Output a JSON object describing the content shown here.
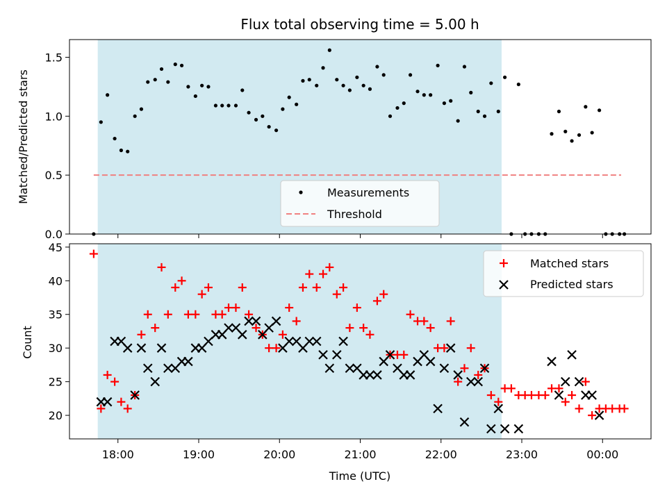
{
  "title": "Flux total observing time = 5.00 h",
  "chart_data": [
    {
      "type": "scatter",
      "panel": "top",
      "ylabel": "Matched/Predicted stars",
      "ylim": [
        0,
        1.65
      ],
      "yticks": [
        {
          "v": 0,
          "label": "0.0"
        },
        {
          "v": 0.5,
          "label": "0.5"
        },
        {
          "v": 1.0,
          "label": "1.0"
        },
        {
          "v": 1.5,
          "label": "1.5"
        }
      ],
      "legend": {
        "position": "lower-center",
        "measurements": "Measurements",
        "threshold": "Threshold"
      },
      "threshold": {
        "value": 0.5,
        "x_start": 17.7,
        "x_end": 24.23,
        "color": "#f08080"
      },
      "points": [
        [
          17.7,
          0.0
        ],
        [
          17.79,
          0.95
        ],
        [
          17.87,
          1.18
        ],
        [
          17.96,
          0.81
        ],
        [
          18.04,
          0.71
        ],
        [
          18.12,
          0.7
        ],
        [
          18.21,
          1.0
        ],
        [
          18.29,
          1.06
        ],
        [
          18.37,
          1.29
        ],
        [
          18.46,
          1.31
        ],
        [
          18.54,
          1.4
        ],
        [
          18.62,
          1.29
        ],
        [
          18.71,
          1.44
        ],
        [
          18.79,
          1.43
        ],
        [
          18.87,
          1.25
        ],
        [
          18.96,
          1.17
        ],
        [
          19.04,
          1.26
        ],
        [
          19.12,
          1.25
        ],
        [
          19.21,
          1.09
        ],
        [
          19.29,
          1.09
        ],
        [
          19.37,
          1.09
        ],
        [
          19.46,
          1.09
        ],
        [
          19.54,
          1.22
        ],
        [
          19.62,
          1.03
        ],
        [
          19.71,
          0.97
        ],
        [
          19.79,
          1.0
        ],
        [
          19.87,
          0.91
        ],
        [
          19.96,
          0.88
        ],
        [
          20.04,
          1.06
        ],
        [
          20.12,
          1.16
        ],
        [
          20.21,
          1.1
        ],
        [
          20.29,
          1.3
        ],
        [
          20.37,
          1.31
        ],
        [
          20.46,
          1.26
        ],
        [
          20.54,
          1.41
        ],
        [
          20.62,
          1.56
        ],
        [
          20.71,
          1.31
        ],
        [
          20.79,
          1.26
        ],
        [
          20.87,
          1.22
        ],
        [
          20.96,
          1.33
        ],
        [
          21.04,
          1.26
        ],
        [
          21.12,
          1.23
        ],
        [
          21.21,
          1.42
        ],
        [
          21.29,
          1.35
        ],
        [
          21.37,
          1.0
        ],
        [
          21.46,
          1.07
        ],
        [
          21.54,
          1.11
        ],
        [
          21.62,
          1.35
        ],
        [
          21.71,
          1.21
        ],
        [
          21.79,
          1.18
        ],
        [
          21.87,
          1.18
        ],
        [
          21.96,
          1.43
        ],
        [
          22.04,
          1.11
        ],
        [
          22.12,
          1.13
        ],
        [
          22.21,
          0.96
        ],
        [
          22.29,
          1.42
        ],
        [
          22.37,
          1.2
        ],
        [
          22.46,
          1.04
        ],
        [
          22.54,
          1.0
        ],
        [
          22.62,
          1.28
        ],
        [
          22.71,
          1.04
        ],
        [
          22.79,
          1.33
        ],
        [
          22.87,
          0.0
        ],
        [
          22.96,
          1.27
        ],
        [
          23.04,
          0.0
        ],
        [
          23.12,
          0.0
        ],
        [
          23.21,
          0.0
        ],
        [
          23.29,
          0.0
        ],
        [
          23.37,
          0.85
        ],
        [
          23.46,
          1.04
        ],
        [
          23.54,
          0.87
        ],
        [
          23.62,
          0.79
        ],
        [
          23.71,
          0.84
        ],
        [
          23.79,
          1.08
        ],
        [
          23.87,
          0.86
        ],
        [
          23.96,
          1.05
        ],
        [
          24.04,
          0.0
        ],
        [
          24.12,
          0.0
        ],
        [
          24.21,
          0.0
        ],
        [
          24.27,
          0.0
        ]
      ]
    },
    {
      "type": "scatter",
      "panel": "bottom",
      "xlabel": "Time (UTC)",
      "ylabel": "Count",
      "ylim": [
        16.5,
        45.5
      ],
      "yticks": [
        {
          "v": 20,
          "label": "20"
        },
        {
          "v": 25,
          "label": "25"
        },
        {
          "v": 30,
          "label": "30"
        },
        {
          "v": 35,
          "label": "35"
        },
        {
          "v": 40,
          "label": "40"
        },
        {
          "v": 45,
          "label": "45"
        }
      ],
      "legend": {
        "position": "top-right",
        "matched": "Matched stars",
        "predicted": "Predicted stars"
      },
      "series": [
        {
          "name": "Matched stars",
          "marker": "+",
          "color": "#ff0000",
          "points": [
            [
              17.7,
              44
            ],
            [
              17.79,
              21
            ],
            [
              17.87,
              26
            ],
            [
              17.96,
              25
            ],
            [
              18.04,
              22
            ],
            [
              18.12,
              21
            ],
            [
              18.21,
              23
            ],
            [
              18.29,
              32
            ],
            [
              18.37,
              35
            ],
            [
              18.46,
              33
            ],
            [
              18.54,
              42
            ],
            [
              18.62,
              35
            ],
            [
              18.71,
              39
            ],
            [
              18.79,
              40
            ],
            [
              18.87,
              35
            ],
            [
              18.96,
              35
            ],
            [
              19.04,
              38
            ],
            [
              19.12,
              39
            ],
            [
              19.21,
              35
            ],
            [
              19.29,
              35
            ],
            [
              19.37,
              36
            ],
            [
              19.46,
              36
            ],
            [
              19.54,
              39
            ],
            [
              19.62,
              35
            ],
            [
              19.71,
              33
            ],
            [
              19.79,
              32
            ],
            [
              19.87,
              30
            ],
            [
              19.96,
              30
            ],
            [
              20.04,
              32
            ],
            [
              20.12,
              36
            ],
            [
              20.21,
              34
            ],
            [
              20.29,
              39
            ],
            [
              20.37,
              41
            ],
            [
              20.46,
              39
            ],
            [
              20.54,
              41
            ],
            [
              20.62,
              42
            ],
            [
              20.71,
              38
            ],
            [
              20.79,
              39
            ],
            [
              20.87,
              33
            ],
            [
              20.96,
              36
            ],
            [
              21.04,
              33
            ],
            [
              21.12,
              32
            ],
            [
              21.21,
              37
            ],
            [
              21.29,
              38
            ],
            [
              21.37,
              29
            ],
            [
              21.46,
              29
            ],
            [
              21.54,
              29
            ],
            [
              21.62,
              35
            ],
            [
              21.71,
              34
            ],
            [
              21.79,
              34
            ],
            [
              21.87,
              33
            ],
            [
              21.96,
              30
            ],
            [
              22.04,
              30
            ],
            [
              22.12,
              34
            ],
            [
              22.21,
              25
            ],
            [
              22.29,
              27
            ],
            [
              22.37,
              30
            ],
            [
              22.46,
              26
            ],
            [
              22.54,
              27
            ],
            [
              22.62,
              23
            ],
            [
              22.71,
              22
            ],
            [
              22.79,
              24
            ],
            [
              22.87,
              24
            ],
            [
              22.96,
              23
            ],
            [
              23.04,
              23
            ],
            [
              23.12,
              23
            ],
            [
              23.21,
              23
            ],
            [
              23.29,
              23
            ],
            [
              23.37,
              24
            ],
            [
              23.46,
              24
            ],
            [
              23.54,
              22
            ],
            [
              23.62,
              23
            ],
            [
              23.71,
              21
            ],
            [
              23.79,
              25
            ],
            [
              23.87,
              20
            ],
            [
              23.96,
              21
            ],
            [
              24.04,
              21
            ],
            [
              24.12,
              21
            ],
            [
              24.21,
              21
            ],
            [
              24.27,
              21
            ]
          ]
        },
        {
          "name": "Predicted stars",
          "marker": "x",
          "color": "#000000",
          "points": [
            [
              17.79,
              22
            ],
            [
              17.87,
              22
            ],
            [
              17.96,
              31
            ],
            [
              18.04,
              31
            ],
            [
              18.12,
              30
            ],
            [
              18.21,
              23
            ],
            [
              18.29,
              30
            ],
            [
              18.37,
              27
            ],
            [
              18.46,
              25
            ],
            [
              18.54,
              30
            ],
            [
              18.62,
              27
            ],
            [
              18.71,
              27
            ],
            [
              18.79,
              28
            ],
            [
              18.87,
              28
            ],
            [
              18.96,
              30
            ],
            [
              19.04,
              30
            ],
            [
              19.12,
              31
            ],
            [
              19.21,
              32
            ],
            [
              19.29,
              32
            ],
            [
              19.37,
              33
            ],
            [
              19.46,
              33
            ],
            [
              19.54,
              32
            ],
            [
              19.62,
              34
            ],
            [
              19.71,
              34
            ],
            [
              19.79,
              32
            ],
            [
              19.87,
              33
            ],
            [
              19.96,
              34
            ],
            [
              20.04,
              30
            ],
            [
              20.12,
              31
            ],
            [
              20.21,
              31
            ],
            [
              20.29,
              30
            ],
            [
              20.37,
              31
            ],
            [
              20.46,
              31
            ],
            [
              20.54,
              29
            ],
            [
              20.62,
              27
            ],
            [
              20.71,
              29
            ],
            [
              20.79,
              31
            ],
            [
              20.87,
              27
            ],
            [
              20.96,
              27
            ],
            [
              21.04,
              26
            ],
            [
              21.12,
              26
            ],
            [
              21.21,
              26
            ],
            [
              21.29,
              28
            ],
            [
              21.37,
              29
            ],
            [
              21.46,
              27
            ],
            [
              21.54,
              26
            ],
            [
              21.62,
              26
            ],
            [
              21.71,
              28
            ],
            [
              21.79,
              29
            ],
            [
              21.87,
              28
            ],
            [
              21.96,
              21
            ],
            [
              22.04,
              27
            ],
            [
              22.12,
              30
            ],
            [
              22.21,
              26
            ],
            [
              22.29,
              19
            ],
            [
              22.37,
              25
            ],
            [
              22.46,
              25
            ],
            [
              22.54,
              27
            ],
            [
              22.62,
              18
            ],
            [
              22.71,
              21
            ],
            [
              22.79,
              18
            ],
            [
              22.96,
              18
            ],
            [
              23.37,
              28
            ],
            [
              23.46,
              23
            ],
            [
              23.54,
              25
            ],
            [
              23.62,
              29
            ],
            [
              23.71,
              25
            ],
            [
              23.79,
              23
            ],
            [
              23.87,
              23
            ],
            [
              23.96,
              20
            ]
          ]
        }
      ]
    }
  ],
  "x_axis": {
    "xlim": [
      17.4,
      24.6
    ],
    "ticks": [
      {
        "v": 18,
        "label": "18:00"
      },
      {
        "v": 19,
        "label": "19:00"
      },
      {
        "v": 20,
        "label": "20:00"
      },
      {
        "v": 21,
        "label": "21:00"
      },
      {
        "v": 22,
        "label": "22:00"
      },
      {
        "v": 23,
        "label": "23:00"
      },
      {
        "v": 24,
        "label": "00:00"
      }
    ]
  },
  "observing_window": {
    "start": 17.75,
    "end": 22.75,
    "color": "#add8e6"
  }
}
